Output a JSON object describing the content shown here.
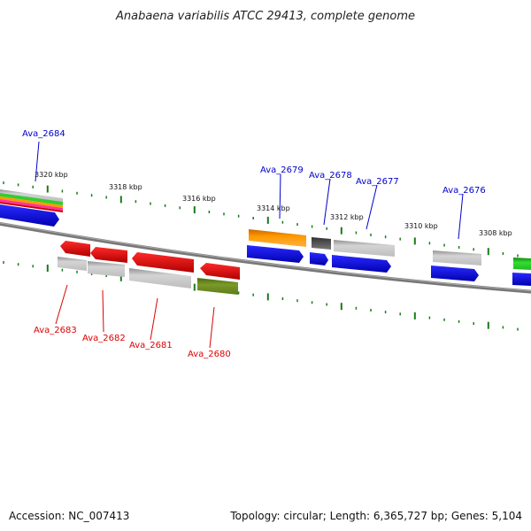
{
  "title": "Anabaena variabilis ATCC 29413, complete genome",
  "footer": {
    "accession": "Accession: NC_007413",
    "summary": "Topology: circular; Length: 6,365,727 bp; Genes: 5,104"
  },
  "scale_labels": [
    "3320 kbp",
    "3318 kbp",
    "3316 kbp",
    "3314 kbp",
    "3312 kbp",
    "3310 kbp",
    "3308 kbp"
  ],
  "genes_forward": [
    "Ava_2684",
    "Ava_2679",
    "Ava_2678",
    "Ava_2677",
    "Ava_2676"
  ],
  "genes_reverse": [
    "Ava_2683",
    "Ava_2682",
    "Ava_2681",
    "Ava_2680"
  ],
  "colors": {
    "forward_label": "#0000cc",
    "reverse_label": "#dd0000",
    "backbone": "#777777",
    "tick": "#1a7a1a",
    "blue": "#0000ee",
    "red": "#ee0000",
    "grey": "#bbbbbb",
    "orange": "#ff9900",
    "dark_grey": "#555555",
    "olive": "#6b8e23",
    "green": "#22cc22"
  }
}
